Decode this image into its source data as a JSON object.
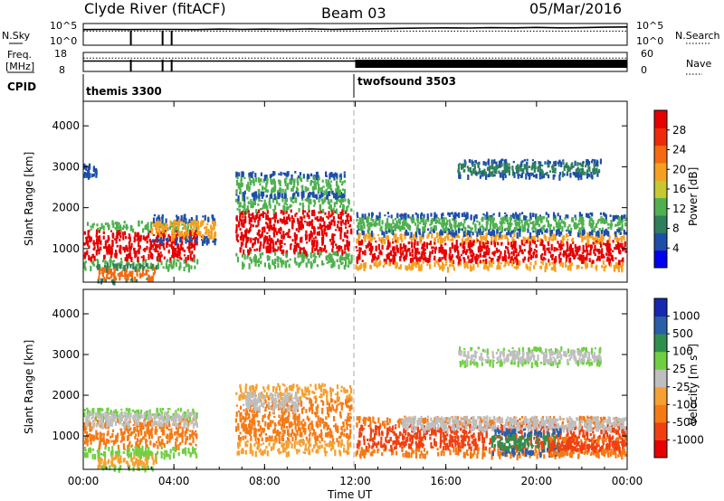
{
  "header": {
    "station": "Clyde River (fitACF)",
    "beam": "Beam 03",
    "date": "05/Mar/2016"
  },
  "colors": {
    "background": "#ffffff",
    "axis": "#000000",
    "scale_power": [
      "#0000ee",
      "#1e4fa8",
      "#2f7f5c",
      "#4fb04f",
      "#c8c832",
      "#f5a020",
      "#f56a10",
      "#ee2a0a",
      "#e60000"
    ],
    "scale_velocity": [
      "#e60000",
      "#f04010",
      "#f57a14",
      "#f5a030",
      "#bfbfbf",
      "#6fcf40",
      "#2f8f4f",
      "#2a5fa8",
      "#1428b0"
    ]
  },
  "chart_data": [
    {
      "id": "sky-search",
      "type": "line",
      "left_label": "N.Sky",
      "right_label": "N.Search",
      "left_ticks": [
        "10^5",
        "10^0"
      ],
      "right_ticks": [
        "10^5",
        "10^0"
      ],
      "x_range_hours": [
        0,
        24
      ],
      "series": [
        {
          "name": "N.Sky",
          "style": "solid",
          "x": [
            0,
            1,
            2,
            3,
            4,
            5,
            6,
            7,
            8,
            9,
            10,
            11,
            12,
            13,
            14,
            15,
            16,
            17,
            18,
            19,
            20,
            21,
            22,
            23,
            24
          ],
          "y": [
            0.72,
            0.73,
            0.72,
            0.73,
            0.73,
            0.72,
            0.74,
            0.73,
            0.74,
            0.73,
            0.75,
            0.73,
            0.74,
            0.76,
            0.78,
            0.79,
            0.8,
            0.79,
            0.81,
            0.8,
            0.82,
            0.8,
            0.81,
            0.83,
            0.84
          ]
        },
        {
          "name": "N.Search",
          "style": "dotted",
          "x": [
            0,
            24
          ],
          "y": [
            0.65,
            0.65
          ]
        }
      ],
      "dropouts_hours": [
        2.1,
        3.5,
        3.9
      ]
    },
    {
      "id": "freq-nave",
      "type": "line",
      "left_label_1": "Freq.",
      "left_label_2": "[MHz]",
      "right_label": "Nave",
      "left_ticks": [
        "18",
        "8"
      ],
      "right_ticks": [
        "60",
        "0"
      ],
      "x_range_hours": [
        0,
        24
      ],
      "series": [
        {
          "name": "Freq.",
          "style": "solid",
          "x": [
            0,
            24
          ],
          "y": [
            0.55,
            0.55
          ]
        },
        {
          "name": "Nave",
          "style": "dotted",
          "x": [
            0,
            24
          ],
          "y": [
            0.7,
            0.7
          ]
        }
      ],
      "nave_block_hours": [
        12,
        24
      ],
      "dropouts_hours": [
        2.1,
        3.5,
        3.9
      ]
    },
    {
      "id": "cpid",
      "type": "table",
      "label": "CPID",
      "entries": [
        {
          "name": "themis 3300",
          "start_hour": 0
        },
        {
          "name": "twofsound 3503",
          "start_hour": 12
        }
      ]
    },
    {
      "id": "power",
      "type": "heatmap",
      "ylabel": "Slant Range [km]",
      "y_range_km": [
        180,
        4600
      ],
      "y_ticks": [
        1000,
        2000,
        3000,
        4000
      ],
      "x_range_hours": [
        0,
        24
      ],
      "colorbar_label": "Power [dB]",
      "colorbar_ticks": [
        "28",
        "24",
        "20",
        "16",
        "12",
        "8",
        "4"
      ],
      "colorbar_range": [
        0,
        32
      ],
      "blobs": [
        {
          "x0": 0.0,
          "x1": 5.0,
          "r0": 550,
          "r1": 1700,
          "core": "#e60000",
          "edge": "#4fb04f"
        },
        {
          "x0": 0.6,
          "x1": 3.2,
          "r0": 200,
          "r1": 650,
          "core": "#f56a10",
          "edge": "#2f7f5c"
        },
        {
          "x0": 3.0,
          "x1": 5.8,
          "r0": 1200,
          "r1": 1850,
          "core": "#f5a020",
          "edge": "#1e4fa8"
        },
        {
          "x0": 6.7,
          "x1": 11.8,
          "r0": 600,
          "r1": 2300,
          "core": "#e60000",
          "edge": "#4fb04f"
        },
        {
          "x0": 6.7,
          "x1": 11.5,
          "r0": 2300,
          "r1": 2900,
          "core": "#4fb04f",
          "edge": "#1e4fa8"
        },
        {
          "x0": 12.0,
          "x1": 24.0,
          "r0": 550,
          "r1": 1400,
          "core": "#e60000",
          "edge": "#f5a020"
        },
        {
          "x0": 12.0,
          "x1": 24.0,
          "r0": 1400,
          "r1": 1900,
          "core": "#4fb04f",
          "edge": "#1e4fa8"
        },
        {
          "x0": 16.5,
          "x1": 22.8,
          "r0": 2800,
          "r1": 3200,
          "core": "#2f7f5c",
          "edge": "#1e4fa8"
        },
        {
          "x0": 0.0,
          "x1": 0.6,
          "r0": 2800,
          "r1": 3100,
          "core": "#1e4fa8",
          "edge": "#1e4fa8"
        }
      ]
    },
    {
      "id": "velocity",
      "type": "heatmap",
      "ylabel": "Slant Range [km]",
      "xlabel": "Time UT",
      "y_range_km": [
        180,
        4600
      ],
      "y_ticks": [
        1000,
        2000,
        3000,
        4000
      ],
      "x_range_hours": [
        0,
        24
      ],
      "x_ticks": [
        "00:00",
        "04:00",
        "08:00",
        "12:00",
        "16:00",
        "20:00",
        "00:00"
      ],
      "colorbar_label": "Velocity  [m s",
      "colorbar_label_sup": "-1",
      "colorbar_label_end": "]",
      "colorbar_ticks": [
        "1000",
        "500",
        "100",
        "25",
        "-25",
        "-100",
        "-500",
        "-1000"
      ],
      "blobs": [
        {
          "x0": 0.0,
          "x1": 5.0,
          "r0": 550,
          "r1": 1700,
          "core": "#f57a14",
          "edge": "#6fcf40"
        },
        {
          "x0": 0.6,
          "x1": 3.2,
          "r0": 200,
          "r1": 650,
          "core": "#f5a030",
          "edge": "#6fcf40"
        },
        {
          "x0": 0.0,
          "x1": 5.0,
          "r0": 1300,
          "r1": 1600,
          "core": "#bfbfbf",
          "edge": "#bfbfbf"
        },
        {
          "x0": 6.7,
          "x1": 11.8,
          "r0": 600,
          "r1": 2300,
          "core": "#f57a14",
          "edge": "#f5a030"
        },
        {
          "x0": 7.0,
          "x1": 9.5,
          "r0": 1700,
          "r1": 2100,
          "core": "#bfbfbf",
          "edge": "#bfbfbf"
        },
        {
          "x0": 12.0,
          "x1": 24.0,
          "r0": 550,
          "r1": 1500,
          "core": "#f04010",
          "edge": "#f57a14"
        },
        {
          "x0": 14.0,
          "x1": 24.0,
          "r0": 1200,
          "r1": 1500,
          "core": "#bfbfbf",
          "edge": "#bfbfbf"
        },
        {
          "x0": 18.0,
          "x1": 21.0,
          "r0": 600,
          "r1": 1200,
          "core": "#2f8f4f",
          "edge": "#2a5fa8"
        },
        {
          "x0": 20.5,
          "x1": 24.0,
          "r0": 600,
          "r1": 1000,
          "core": "#f04010",
          "edge": "#f57a14"
        },
        {
          "x0": 16.5,
          "x1": 22.8,
          "r0": 2800,
          "r1": 3200,
          "core": "#bfbfbf",
          "edge": "#6fcf40"
        }
      ]
    }
  ]
}
